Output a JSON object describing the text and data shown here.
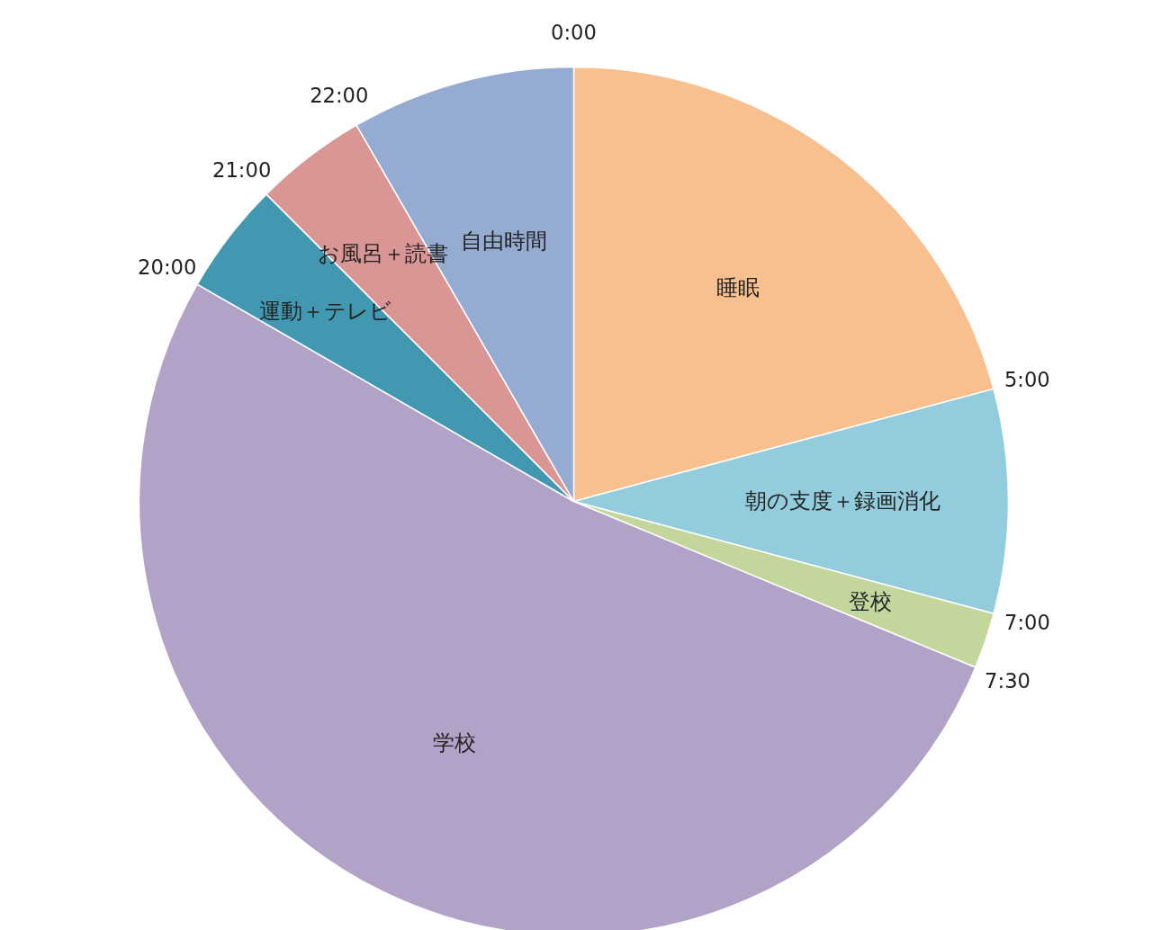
{
  "chart_data": {
    "type": "pie",
    "categories": [
      "睡眠",
      "朝の支度＋録画消化",
      "登校",
      "学校",
      "運動＋テレビ",
      "お風呂＋読書",
      "自由時間"
    ],
    "values": [
      20.83,
      8.33,
      2.08,
      52.09,
      4.17,
      4.17,
      8.33
    ],
    "colors": [
      "#f9c08f",
      "#93cddd",
      "#c3d69b",
      "#b3a2c7",
      "#4298b0",
      "#d99694",
      "#95abd1"
    ],
    "annotations": [
      "0:00",
      "5:00",
      "7:00",
      "7:30",
      "20:00",
      "21:00",
      "22:00"
    ]
  }
}
